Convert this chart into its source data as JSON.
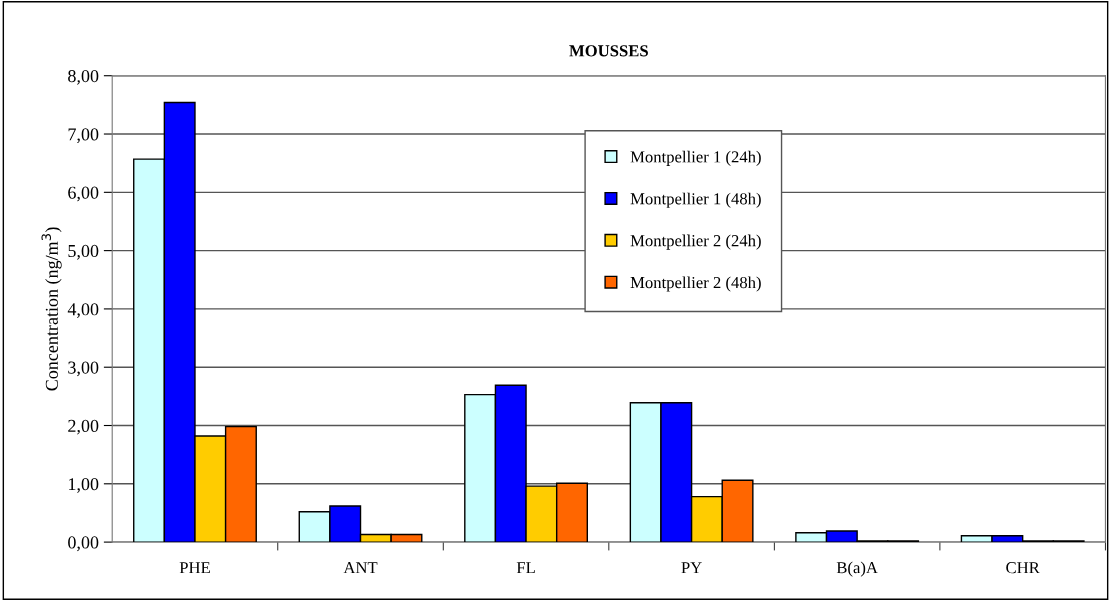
{
  "chart_data": {
    "type": "bar",
    "title": "MOUSSES",
    "ylabel": "Concentration (ng/m$^{3}$)",
    "categories": [
      "PHE",
      "ANT",
      "FL",
      "PY",
      "B(a)A",
      "CHR"
    ],
    "series": [
      {
        "name": "Montpellier 1 (24h)",
        "color": "#ccffff",
        "values": [
          6.57,
          0.52,
          2.53,
          2.39,
          0.16,
          0.11
        ]
      },
      {
        "name": "Montpellier 1 (48h)",
        "color": "#0000ff",
        "values": [
          7.54,
          0.62,
          2.69,
          2.39,
          0.19,
          0.11
        ]
      },
      {
        "name": "Montpellier 2 (24h)",
        "color": "#ffcc00",
        "values": [
          1.82,
          0.13,
          0.96,
          0.78,
          0.02,
          0.02
        ]
      },
      {
        "name": "Montpellier 2 (48h)",
        "color": "#ff6600",
        "values": [
          1.98,
          0.13,
          1.01,
          1.06,
          0.02,
          0.02
        ]
      }
    ],
    "ylim": [
      0,
      8
    ],
    "yticks": [
      {
        "value": 0,
        "label": "0,00"
      },
      {
        "value": 1,
        "label": "1,00"
      },
      {
        "value": 2,
        "label": "2,00"
      },
      {
        "value": 3,
        "label": "3,00"
      },
      {
        "value": 4,
        "label": "4,00"
      },
      {
        "value": 5,
        "label": "5,00"
      },
      {
        "value": 6,
        "label": "6,00"
      },
      {
        "value": 7,
        "label": "7,00"
      },
      {
        "value": 8,
        "label": "8,00"
      }
    ],
    "grid": "y",
    "legend": "top"
  }
}
